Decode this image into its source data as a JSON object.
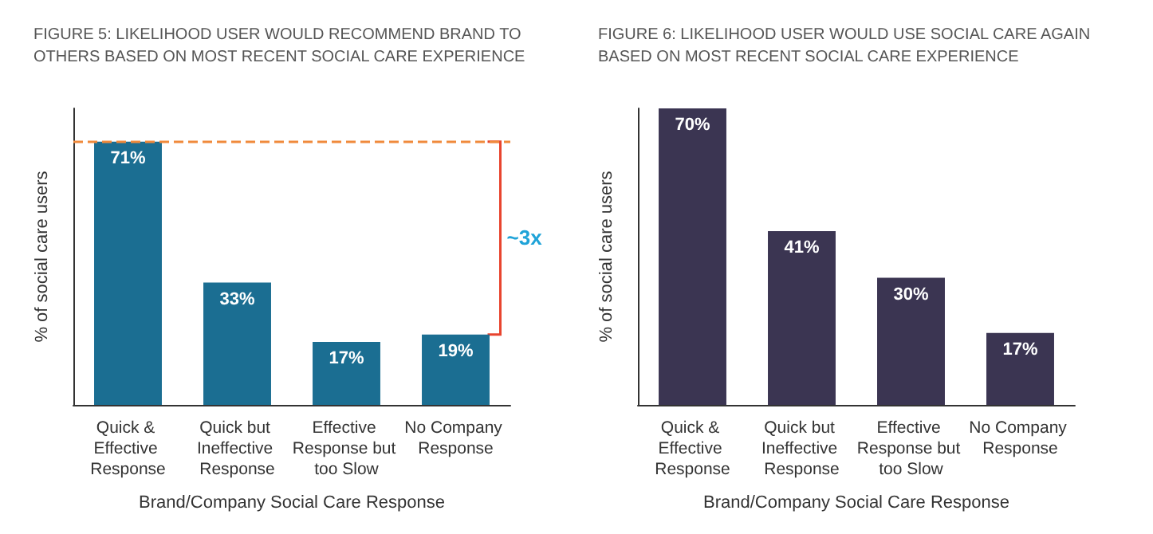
{
  "chart_data": [
    {
      "type": "bar",
      "title": "FIGURE 5: LIKELIHOOD USER WOULD RECOMMEND BRAND TO OTHERS BASED ON MOST RECENT SOCIAL CARE EXPERIENCE",
      "xlabel": "Brand/Company Social Care Response",
      "ylabel": "% of social care users",
      "categories": [
        "Quick & Effective Response",
        "Quick but Ineffective Response",
        "Effective Response but too Slow",
        "No Company Response"
      ],
      "values": [
        71,
        33,
        17,
        19
      ],
      "color": "#1b6e92",
      "value_labels": [
        "71%",
        "33%",
        "17%",
        "19%"
      ],
      "ref_lines": [
        {
          "axis": "y",
          "value": 71,
          "color": "#f08a3c",
          "line_style": "dashed"
        }
      ],
      "annotations": [
        "~3x"
      ],
      "tick_labels": "x"
    },
    {
      "type": "bar",
      "title": "FIGURE 6: LIKELIHOOD USER WOULD USE SOCIAL CARE AGAIN BASED ON MOST RECENT SOCIAL CARE EXPERIENCE",
      "xlabel": "Brand/Company Social Care Response",
      "ylabel": "% of social care users",
      "categories": [
        "Quick & Effective Response",
        "Quick but Ineffective Response",
        "Effective Response but too Slow",
        "No Company Response"
      ],
      "values": [
        70,
        41,
        30,
        17
      ],
      "color": "#3b3552",
      "value_labels": [
        "70%",
        "41%",
        "30%",
        "17%"
      ],
      "tick_labels": "x"
    }
  ]
}
